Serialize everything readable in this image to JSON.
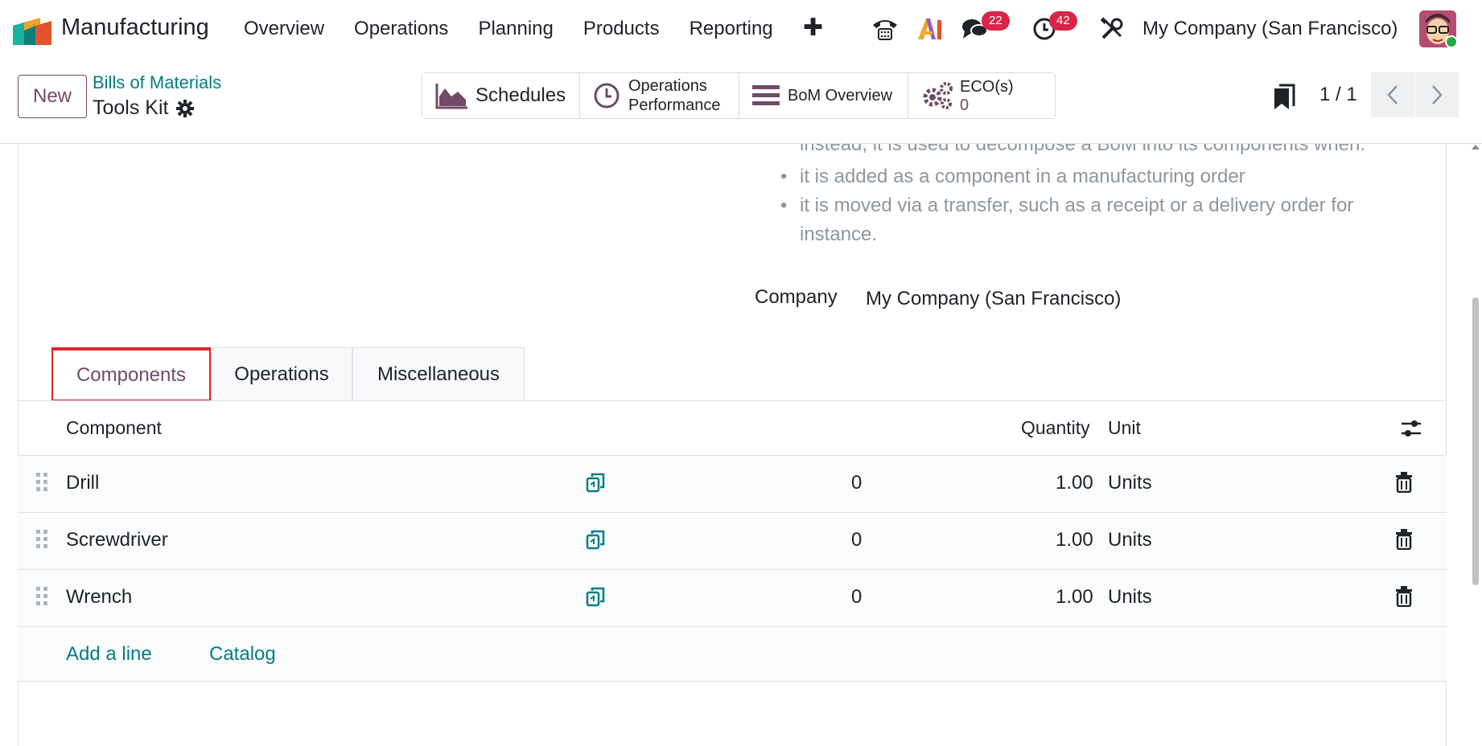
{
  "navbar": {
    "app_name": "Manufacturing",
    "menu": [
      "Overview",
      "Operations",
      "Planning",
      "Products",
      "Reporting"
    ],
    "messages_badge": "22",
    "activities_badge": "42",
    "company": "My Company (San Francisco)"
  },
  "control_panel": {
    "new_label": "New",
    "breadcrumb": "Bills of Materials",
    "record_title": "Tools Kit",
    "smart_buttons": {
      "schedules": "Schedules",
      "operations_performance_line1": "Operations",
      "operations_performance_line2": "Performance",
      "bom_overview": "BoM Overview",
      "eco_label": "ECO(s)",
      "eco_count": "0"
    },
    "pager": "1 / 1"
  },
  "form": {
    "note_cut": "instead, it is used to decompose a BoM into its components when:",
    "note_items": [
      "it is added as a component in a manufacturing order",
      "it is moved via a transfer, such as a receipt or a delivery order for instance."
    ],
    "company_label": "Company",
    "company_value": "My Company (San Francisco)"
  },
  "tabs": [
    "Components",
    "Operations",
    "Miscellaneous"
  ],
  "table": {
    "headers": {
      "component": "Component",
      "quantity": "Quantity",
      "unit": "Unit"
    },
    "rows": [
      {
        "component": "Drill",
        "on_hand": "0",
        "quantity": "1.00",
        "unit": "Units"
      },
      {
        "component": "Screwdriver",
        "on_hand": "0",
        "quantity": "1.00",
        "unit": "Units"
      },
      {
        "component": "Wrench",
        "on_hand": "0",
        "quantity": "1.00",
        "unit": "Units"
      }
    ],
    "add_line": "Add a line",
    "catalog": "Catalog"
  },
  "colors": {
    "primary": "#714b67",
    "link": "#017e84",
    "badge": "#d9254a",
    "active_tab_border": "#e0262a"
  }
}
